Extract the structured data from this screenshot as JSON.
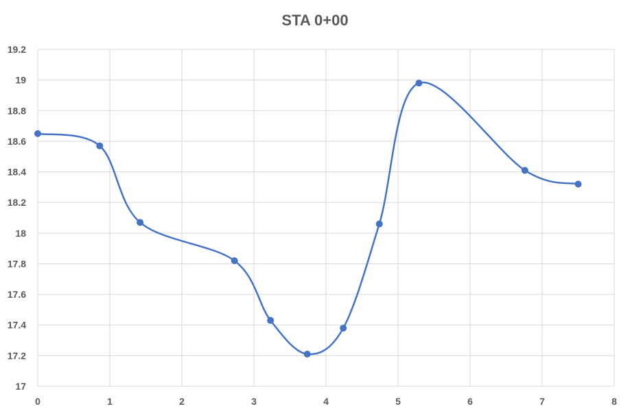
{
  "chart_data": {
    "type": "scatter",
    "title": "STA 0+00",
    "xlabel": "",
    "ylabel": "",
    "xlim": [
      0,
      8
    ],
    "ylim": [
      17,
      19.2
    ],
    "x_ticks": [
      "0",
      "1",
      "2",
      "3",
      "4",
      "5",
      "6",
      "7",
      "8"
    ],
    "y_ticks": [
      "17",
      "17.2",
      "17.4",
      "17.6",
      "17.8",
      "18",
      "18.2",
      "18.4",
      "18.6",
      "18.8",
      "19",
      "19.2"
    ],
    "grid": true,
    "legend": "none",
    "smooth_line": true,
    "series": [
      {
        "x": [
          0,
          0.86,
          1.42,
          2.73,
          3.23,
          3.74,
          4.24,
          4.74,
          5.29,
          6.76,
          7.5
        ],
        "y": [
          18.65,
          18.57,
          18.07,
          17.82,
          17.43,
          17.21,
          17.38,
          18.06,
          18.98,
          18.41,
          18.32
        ]
      }
    ],
    "colors": {
      "series": "#4472C4",
      "grid": "#D9D9D9",
      "text": "#595959"
    }
  }
}
